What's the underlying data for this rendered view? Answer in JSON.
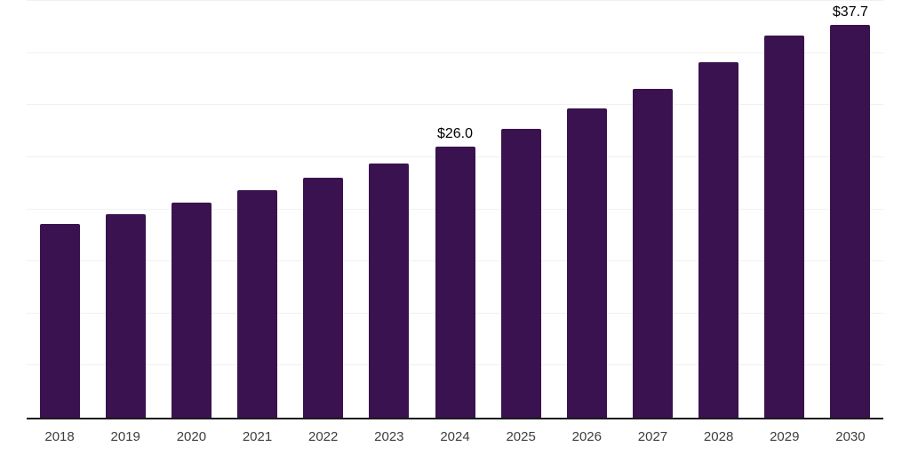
{
  "chart_data": {
    "type": "bar",
    "title": "",
    "xlabel": "",
    "ylabel": "",
    "categories": [
      "2018",
      "2019",
      "2020",
      "2021",
      "2022",
      "2023",
      "2024",
      "2025",
      "2026",
      "2027",
      "2028",
      "2029",
      "2030"
    ],
    "values": [
      18.6,
      19.5,
      20.6,
      21.8,
      23.0,
      24.4,
      26.0,
      27.7,
      29.7,
      31.6,
      34.1,
      36.7,
      37.7
    ],
    "data_labels": [
      "",
      "",
      "",
      "",
      "",
      "",
      "$26.0",
      "",
      "",
      "",
      "",
      "",
      "$37.7"
    ],
    "ylim": [
      0,
      40
    ],
    "gridline_step": 5,
    "grid": "horizontal",
    "legend": "none",
    "colors": {
      "bar": "#39124f",
      "gridline": "#f1f1f4",
      "axis_line": "#1a1a1a",
      "tick_label": "#3d3d3d",
      "data_label": "#000000",
      "background": "#ffffff"
    }
  }
}
